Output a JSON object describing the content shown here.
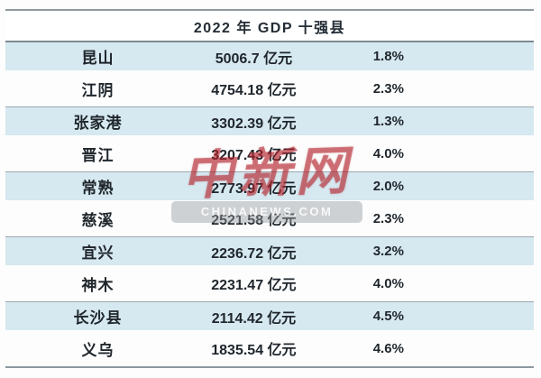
{
  "page": {
    "title": "2022 年 GDP 十强县"
  },
  "watermark": {
    "logo_text": "中新网",
    "site_text": "CHINANEWS.COM"
  },
  "colors": {
    "row_highlight": "#d6e8f0",
    "divider": "#8d98a0",
    "watermark_red": "#b3232b"
  },
  "chart_data": {
    "type": "table",
    "title": "2022 年 GDP 十强县",
    "unit": "亿元",
    "rows": [
      {
        "name": "昆山",
        "gdp": "5006.7 亿元",
        "gdp_value": 5006.7,
        "growth": "1.8%",
        "growth_value": 1.8
      },
      {
        "name": "江阴",
        "gdp": "4754.18 亿元",
        "gdp_value": 4754.18,
        "growth": "2.3%",
        "growth_value": 2.3
      },
      {
        "name": "张家港",
        "gdp": "3302.39 亿元",
        "gdp_value": 3302.39,
        "growth": "1.3%",
        "growth_value": 1.3
      },
      {
        "name": "晋江",
        "gdp": "3207.43 亿元",
        "gdp_value": 3207.43,
        "growth": "4.0%",
        "growth_value": 4.0
      },
      {
        "name": "常熟",
        "gdp": "2773.97 亿元",
        "gdp_value": 2773.97,
        "growth": "2.0%",
        "growth_value": 2.0
      },
      {
        "name": "慈溪",
        "gdp": "2521.58 亿元",
        "gdp_value": 2521.58,
        "growth": "2.3%",
        "growth_value": 2.3
      },
      {
        "name": "宜兴",
        "gdp": "2236.72 亿元",
        "gdp_value": 2236.72,
        "growth": "3.2%",
        "growth_value": 3.2
      },
      {
        "name": "神木",
        "gdp": "2231.47 亿元",
        "gdp_value": 2231.47,
        "growth": "4.0%",
        "growth_value": 4.0
      },
      {
        "name": "长沙县",
        "gdp": "2114.42 亿元",
        "gdp_value": 2114.42,
        "growth": "4.5%",
        "growth_value": 4.5
      },
      {
        "name": "义乌",
        "gdp": "1835.54 亿元",
        "gdp_value": 1835.54,
        "growth": "4.6%",
        "growth_value": 4.6
      }
    ]
  }
}
